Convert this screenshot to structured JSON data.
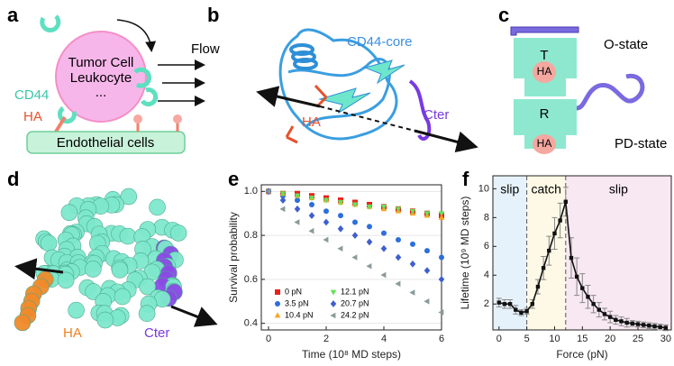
{
  "figure": {
    "panel_labels": [
      "a",
      "b",
      "c",
      "d",
      "e",
      "f"
    ],
    "a": {
      "cell": [
        "Tumor Cell",
        "Leukocyte",
        "..."
      ],
      "flow": "Flow",
      "cd44": "CD44",
      "ha": "HA",
      "endothelial": "Endothelial cells"
    },
    "b": {
      "core": "CD44-core",
      "ha": "HA",
      "cter": "Cter"
    },
    "c": {
      "t": "T",
      "ha_top": "HA",
      "o_state": "O-state",
      "r": "R",
      "ha_bottom": "HA",
      "pd_state": "PD-state"
    },
    "d": {
      "ha": "HA",
      "cter": "Cter"
    }
  },
  "chart_data": [
    {
      "type": "scatter",
      "x_label": "Time (10⁸ MD steps)",
      "y_label": "Survival probability",
      "x": [
        0,
        0.5,
        1,
        1.5,
        2,
        2.5,
        3,
        3.5,
        4,
        4.5,
        5,
        5.5,
        6
      ],
      "series": [
        {
          "name": "0 pN",
          "color": "#e8201c",
          "marker": "square",
          "values": [
            1.0,
            0.99,
            0.99,
            0.98,
            0.97,
            0.96,
            0.95,
            0.94,
            0.93,
            0.92,
            0.91,
            0.9,
            0.89
          ]
        },
        {
          "name": "3.5 pN",
          "color": "#2c6fdb",
          "marker": "circle",
          "values": [
            1.0,
            0.98,
            0.96,
            0.94,
            0.91,
            0.89,
            0.86,
            0.84,
            0.81,
            0.78,
            0.76,
            0.73,
            0.7
          ]
        },
        {
          "name": "10.4 pN",
          "color": "#f5a623",
          "marker": "triangle-up",
          "values": [
            1.0,
            0.99,
            0.98,
            0.97,
            0.96,
            0.95,
            0.94,
            0.93,
            0.92,
            0.91,
            0.9,
            0.89,
            0.88
          ]
        },
        {
          "name": "12.1 pN",
          "color": "#66e05a",
          "marker": "triangle-down",
          "values": [
            1.0,
            0.99,
            0.98,
            0.97,
            0.96,
            0.95,
            0.94,
            0.93,
            0.93,
            0.92,
            0.91,
            0.9,
            0.9
          ]
        },
        {
          "name": "20.7 pN",
          "color": "#3f5fcf",
          "marker": "diamond",
          "values": [
            1.0,
            0.96,
            0.92,
            0.89,
            0.86,
            0.83,
            0.8,
            0.77,
            0.74,
            0.7,
            0.67,
            0.64,
            0.6
          ]
        },
        {
          "name": "24.2 pN",
          "color": "#8a9a9a",
          "marker": "triangle-left",
          "values": [
            1.0,
            0.92,
            0.86,
            0.82,
            0.78,
            0.74,
            0.7,
            0.66,
            0.62,
            0.58,
            0.54,
            0.5,
            0.45
          ]
        }
      ],
      "xlim": [
        -0.25,
        6
      ],
      "ylim": [
        0.37,
        1.03
      ],
      "xticks": [
        0,
        2,
        4,
        6
      ],
      "yticks": [
        0.4,
        0.6,
        0.8,
        {
          "value": 1,
          "label": "1.0"
        }
      ],
      "grid": true,
      "legend": "lower left"
    },
    {
      "type": "line",
      "x_label": "Force (pN)",
      "y_label": "Lifetime (10⁹ MD steps)",
      "x": [
        0,
        1,
        2,
        3,
        4,
        5,
        6,
        7,
        8,
        9,
        10,
        11,
        12,
        13,
        14,
        15,
        16,
        17,
        18,
        19,
        20,
        21,
        22,
        23,
        24,
        25,
        26,
        27,
        28,
        29,
        30
      ],
      "values": [
        2.1,
        2.0,
        2.0,
        1.6,
        1.4,
        1.5,
        2.0,
        3.2,
        4.5,
        5.7,
        6.9,
        7.8,
        9.1,
        5.2,
        3.9,
        3.1,
        2.5,
        2.0,
        1.6,
        1.3,
        1.1,
        0.9,
        0.8,
        0.7,
        0.65,
        0.6,
        0.55,
        0.5,
        0.45,
        0.4,
        0.35
      ],
      "errors": [
        0.3,
        0.3,
        0.3,
        0.3,
        0.2,
        0.2,
        0.3,
        0.5,
        0.8,
        1.0,
        1.1,
        1.2,
        1.0,
        1.4,
        1.3,
        1.0,
        0.8,
        0.6,
        0.5,
        0.4,
        0.4,
        0.3,
        0.3,
        0.3,
        0.2,
        0.2,
        0.2,
        0.2,
        0.2,
        0.2,
        0.2
      ],
      "color": "#111111",
      "regions": [
        {
          "label": "slip",
          "range": [
            -1.1,
            5
          ],
          "color": "#e6f2fb"
        },
        {
          "label": "catch",
          "range": [
            5,
            12
          ],
          "color": "#fdf9e6"
        },
        {
          "label": "slip",
          "range": [
            12,
            31
          ],
          "color": "#f8e8f1"
        }
      ],
      "dividers": [
        5,
        12
      ],
      "xlim": [
        -1.1,
        31
      ],
      "ylim": [
        0.2,
        10.9
      ],
      "xticks": [
        0,
        5,
        10,
        15,
        20,
        25,
        30
      ],
      "yticks": [
        2,
        4,
        6,
        8,
        10
      ]
    }
  ]
}
